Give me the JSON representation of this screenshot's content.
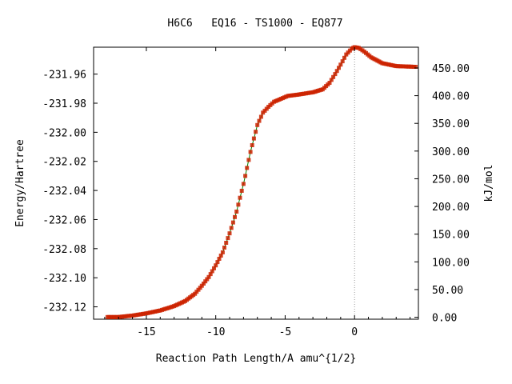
{
  "chart_data": {
    "type": "line",
    "title": "H6C6   EQ16 - TS1000 - EQ877",
    "xlabel": "Reaction Path Length/A amu^{1/2}",
    "ylabel": "Energy/Hartree",
    "y2label": "kJ/mol",
    "xlim": [
      -18.8,
      4.6
    ],
    "ylim": [
      -232.1285,
      -231.9415
    ],
    "y2lim": [
      -3.5,
      487.5
    ],
    "x_ticks": [
      -15,
      -10,
      -5,
      0
    ],
    "x_tick_labels": [
      "-15",
      "-10",
      "-5",
      "0"
    ],
    "y_ticks": [
      -231.96,
      -231.98,
      -232.0,
      -232.02,
      -232.04,
      -232.06,
      -232.08,
      -232.1,
      -232.12
    ],
    "y_tick_labels": [
      "-231.96",
      "-231.98",
      "-232.00",
      "-232.02",
      "-232.04",
      "-232.06",
      "-232.08",
      "-232.10",
      "-232.12"
    ],
    "y2_ticks": [
      450,
      400,
      350,
      300,
      250,
      200,
      150,
      100,
      50,
      0
    ],
    "y2_tick_labels": [
      "450.00",
      "400.00",
      "350.00",
      "300.00",
      "250.00",
      "200.00",
      "150.00",
      "100.00",
      "50.00",
      "0.00"
    ],
    "ts_marker_x": 0,
    "grid": false,
    "line_color": "#008000",
    "marker_color": "#cc2200",
    "series": [
      {
        "x": [
          -17.8,
          -17.0,
          -16.0,
          -15.0,
          -14.0,
          -13.0,
          -12.2,
          -11.5,
          -11.0,
          -10.5,
          -10.0,
          -9.5,
          -9.0,
          -8.5,
          -8.0,
          -7.5,
          -7.0,
          -6.6,
          -6.2,
          -5.8,
          -5.3,
          -4.8,
          -4.0,
          -3.0,
          -2.3,
          -1.8,
          -1.4,
          -1.0,
          -0.6,
          -0.2,
          0.0,
          0.3,
          0.7,
          1.2,
          2.0,
          3.0,
          4.4
        ],
        "y": [
          -232.127,
          -232.127,
          -232.126,
          -232.1245,
          -232.1225,
          -232.1195,
          -232.116,
          -232.111,
          -232.1055,
          -232.0995,
          -232.0915,
          -232.0825,
          -232.0695,
          -232.0545,
          -232.0355,
          -232.0135,
          -231.995,
          -231.9865,
          -231.9825,
          -231.979,
          -231.977,
          -231.975,
          -231.974,
          -231.9725,
          -231.9705,
          -231.966,
          -231.96,
          -231.9535,
          -231.9465,
          -231.9425,
          -231.9415,
          -231.942,
          -231.9445,
          -231.9485,
          -231.9525,
          -231.9545,
          -231.955
        ]
      }
    ]
  }
}
